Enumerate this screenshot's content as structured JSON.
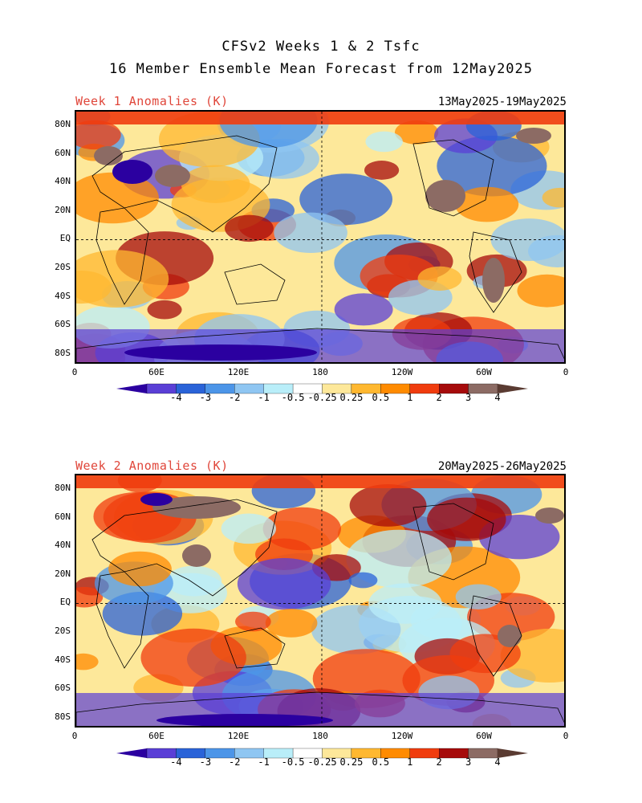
{
  "title_line1": "CFSv2 Weeks 1 & 2 Tsfc",
  "title_line2": "16 Member Ensemble Mean Forecast from 12May2025",
  "panels": [
    {
      "label": "Week 1 Anomalies (K)",
      "dates": "13May2025-19May2025"
    },
    {
      "label": "Week 2 Anomalies (K)",
      "dates": "20May2025-26May2025"
    }
  ],
  "lat_labels": [
    "80N",
    "60N",
    "40N",
    "20N",
    "EQ",
    "20S",
    "40S",
    "60S",
    "80S"
  ],
  "lon_labels": [
    "0",
    "60E",
    "120E",
    "180",
    "120W",
    "60W",
    "0"
  ],
  "colorbar": {
    "labels": [
      "-4",
      "-3",
      "-2",
      "-1",
      "-0.5",
      "-0.25",
      "0.25",
      "0.5",
      "1",
      "2",
      "3",
      "4"
    ],
    "colors": [
      "#2b00a0",
      "#5a3fd6",
      "#2a63d8",
      "#4c95e8",
      "#8fc6f2",
      "#b9eef9",
      "#ffffff",
      "#fde89a",
      "#ffb830",
      "#ff8b00",
      "#f03c0e",
      "#a60b0b",
      "#8c6b64",
      "#5a3b32"
    ]
  }
}
